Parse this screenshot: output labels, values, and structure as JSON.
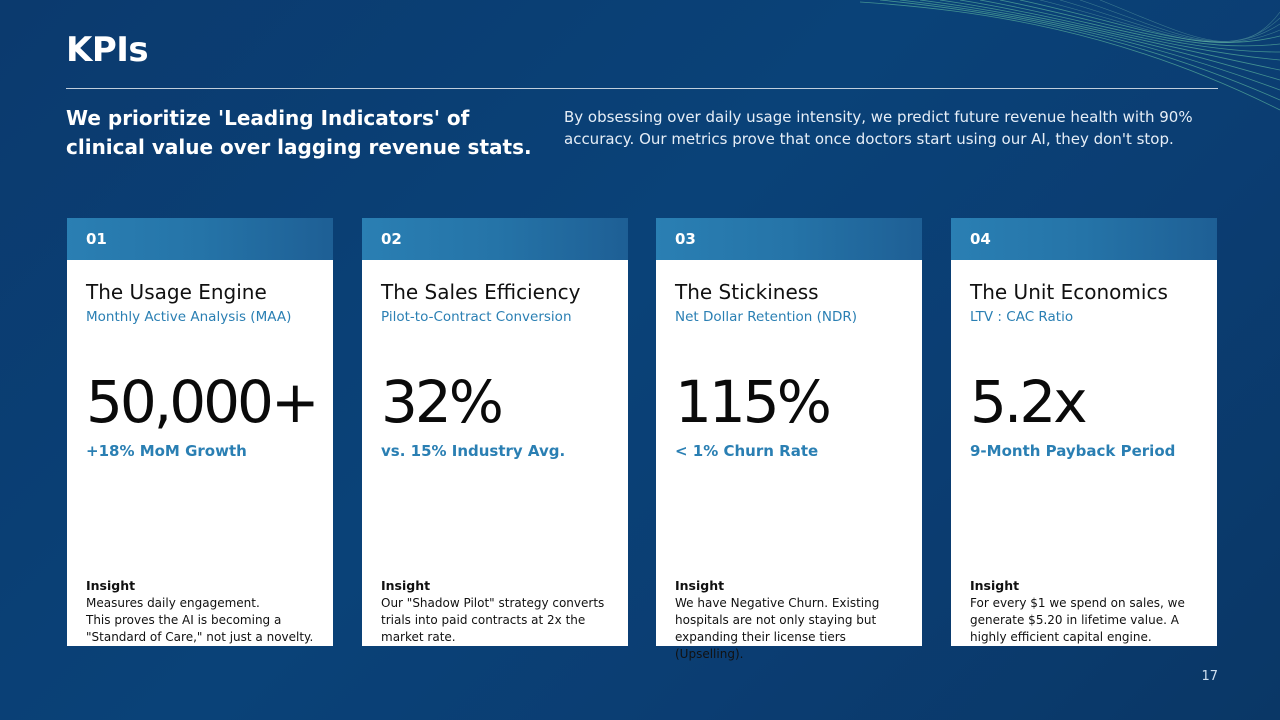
{
  "slide": {
    "title": "KPIs",
    "lead_left": "We prioritize 'Leading Indicators' of clinical value over lagging revenue stats.",
    "lead_right": "By obsessing over daily usage intensity, we predict future revenue health with 90% accuracy. Our metrics prove that once doctors start using our AI, they don't stop.",
    "page_number": "17"
  },
  "cards": [
    {
      "number": "01",
      "title": "The Usage Engine",
      "subtitle": "Monthly Active Analysis (MAA)",
      "value": "50,000+",
      "metric": "+18% MoM Growth",
      "insight_label": "Insight",
      "insight": "Measures daily engagement.\nThis proves the AI is becoming a \"Standard of Care,\" not just a novelty."
    },
    {
      "number": "02",
      "title": "The Sales Efficiency",
      "subtitle": "Pilot-to-Contract Conversion",
      "value": "32%",
      "metric": "vs. 15% Industry Avg.",
      "insight_label": "Insight",
      "insight": "Our \"Shadow Pilot\" strategy converts trials into paid contracts at 2x the market rate."
    },
    {
      "number": "03",
      "title": "The Stickiness",
      "subtitle": "Net Dollar Retention (NDR)",
      "value": "115%",
      "metric": "< 1% Churn Rate",
      "insight_label": "Insight",
      "insight": "We have Negative Churn. Existing hospitals are not only staying but expanding their license tiers (Upselling)."
    },
    {
      "number": "04",
      "title": "The Unit Economics",
      "subtitle": "LTV : CAC Ratio",
      "value": "5.2x",
      "metric": "9-Month Payback Period",
      "insight_label": "Insight",
      "insight": "For every $1 we spend on sales, we generate $5.20 in lifetime value. A highly efficient capital engine."
    }
  ],
  "colors": {
    "background": "#0b3a6e",
    "accent": "#2a7fb3",
    "wave": "#6fd3a8"
  }
}
